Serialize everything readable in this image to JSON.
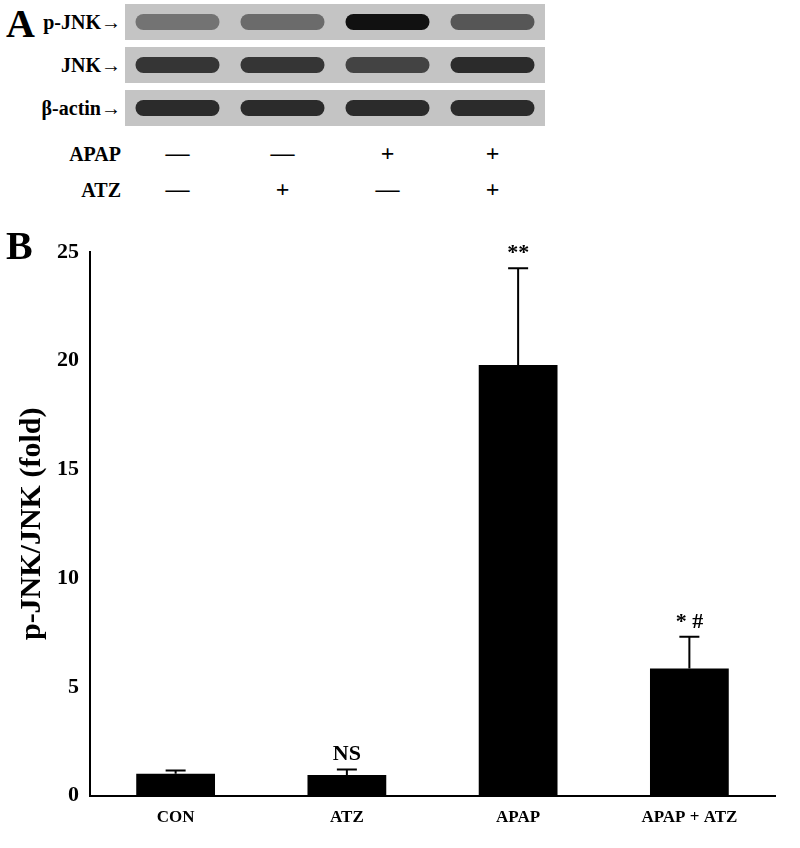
{
  "panel_a": {
    "label": "A",
    "rows": [
      {
        "label": "p-JNK→",
        "bands": [
          0.45,
          0.5,
          1,
          0.62
        ]
      },
      {
        "label": "JNK→",
        "bands": [
          0.8,
          0.8,
          0.72,
          0.85
        ]
      },
      {
        "label": "β-actin→",
        "bands": [
          0.85,
          0.85,
          0.85,
          0.85
        ]
      }
    ],
    "treatments": [
      {
        "name": "APAP",
        "signs": [
          "—",
          "—",
          "+",
          "+"
        ]
      },
      {
        "name": "ATZ",
        "signs": [
          "—",
          "+",
          "—",
          "+"
        ]
      }
    ]
  },
  "chart_data": {
    "type": "bar",
    "panel_label": "B",
    "y_label": "p-JNK/JNK (fold)",
    "categories": [
      "CON",
      "ATZ",
      "APAP",
      "APAP + ATZ"
    ],
    "values": [
      1.0,
      0.95,
      19.8,
      5.85
    ],
    "errors": [
      0.15,
      0.25,
      4.45,
      1.45
    ],
    "annotations": [
      null,
      "NS",
      "**",
      "* #"
    ],
    "color": "#000000",
    "ylim": [
      0,
      25
    ],
    "yticks": [
      0,
      5,
      10,
      15,
      20,
      25
    ],
    "grid": false
  }
}
